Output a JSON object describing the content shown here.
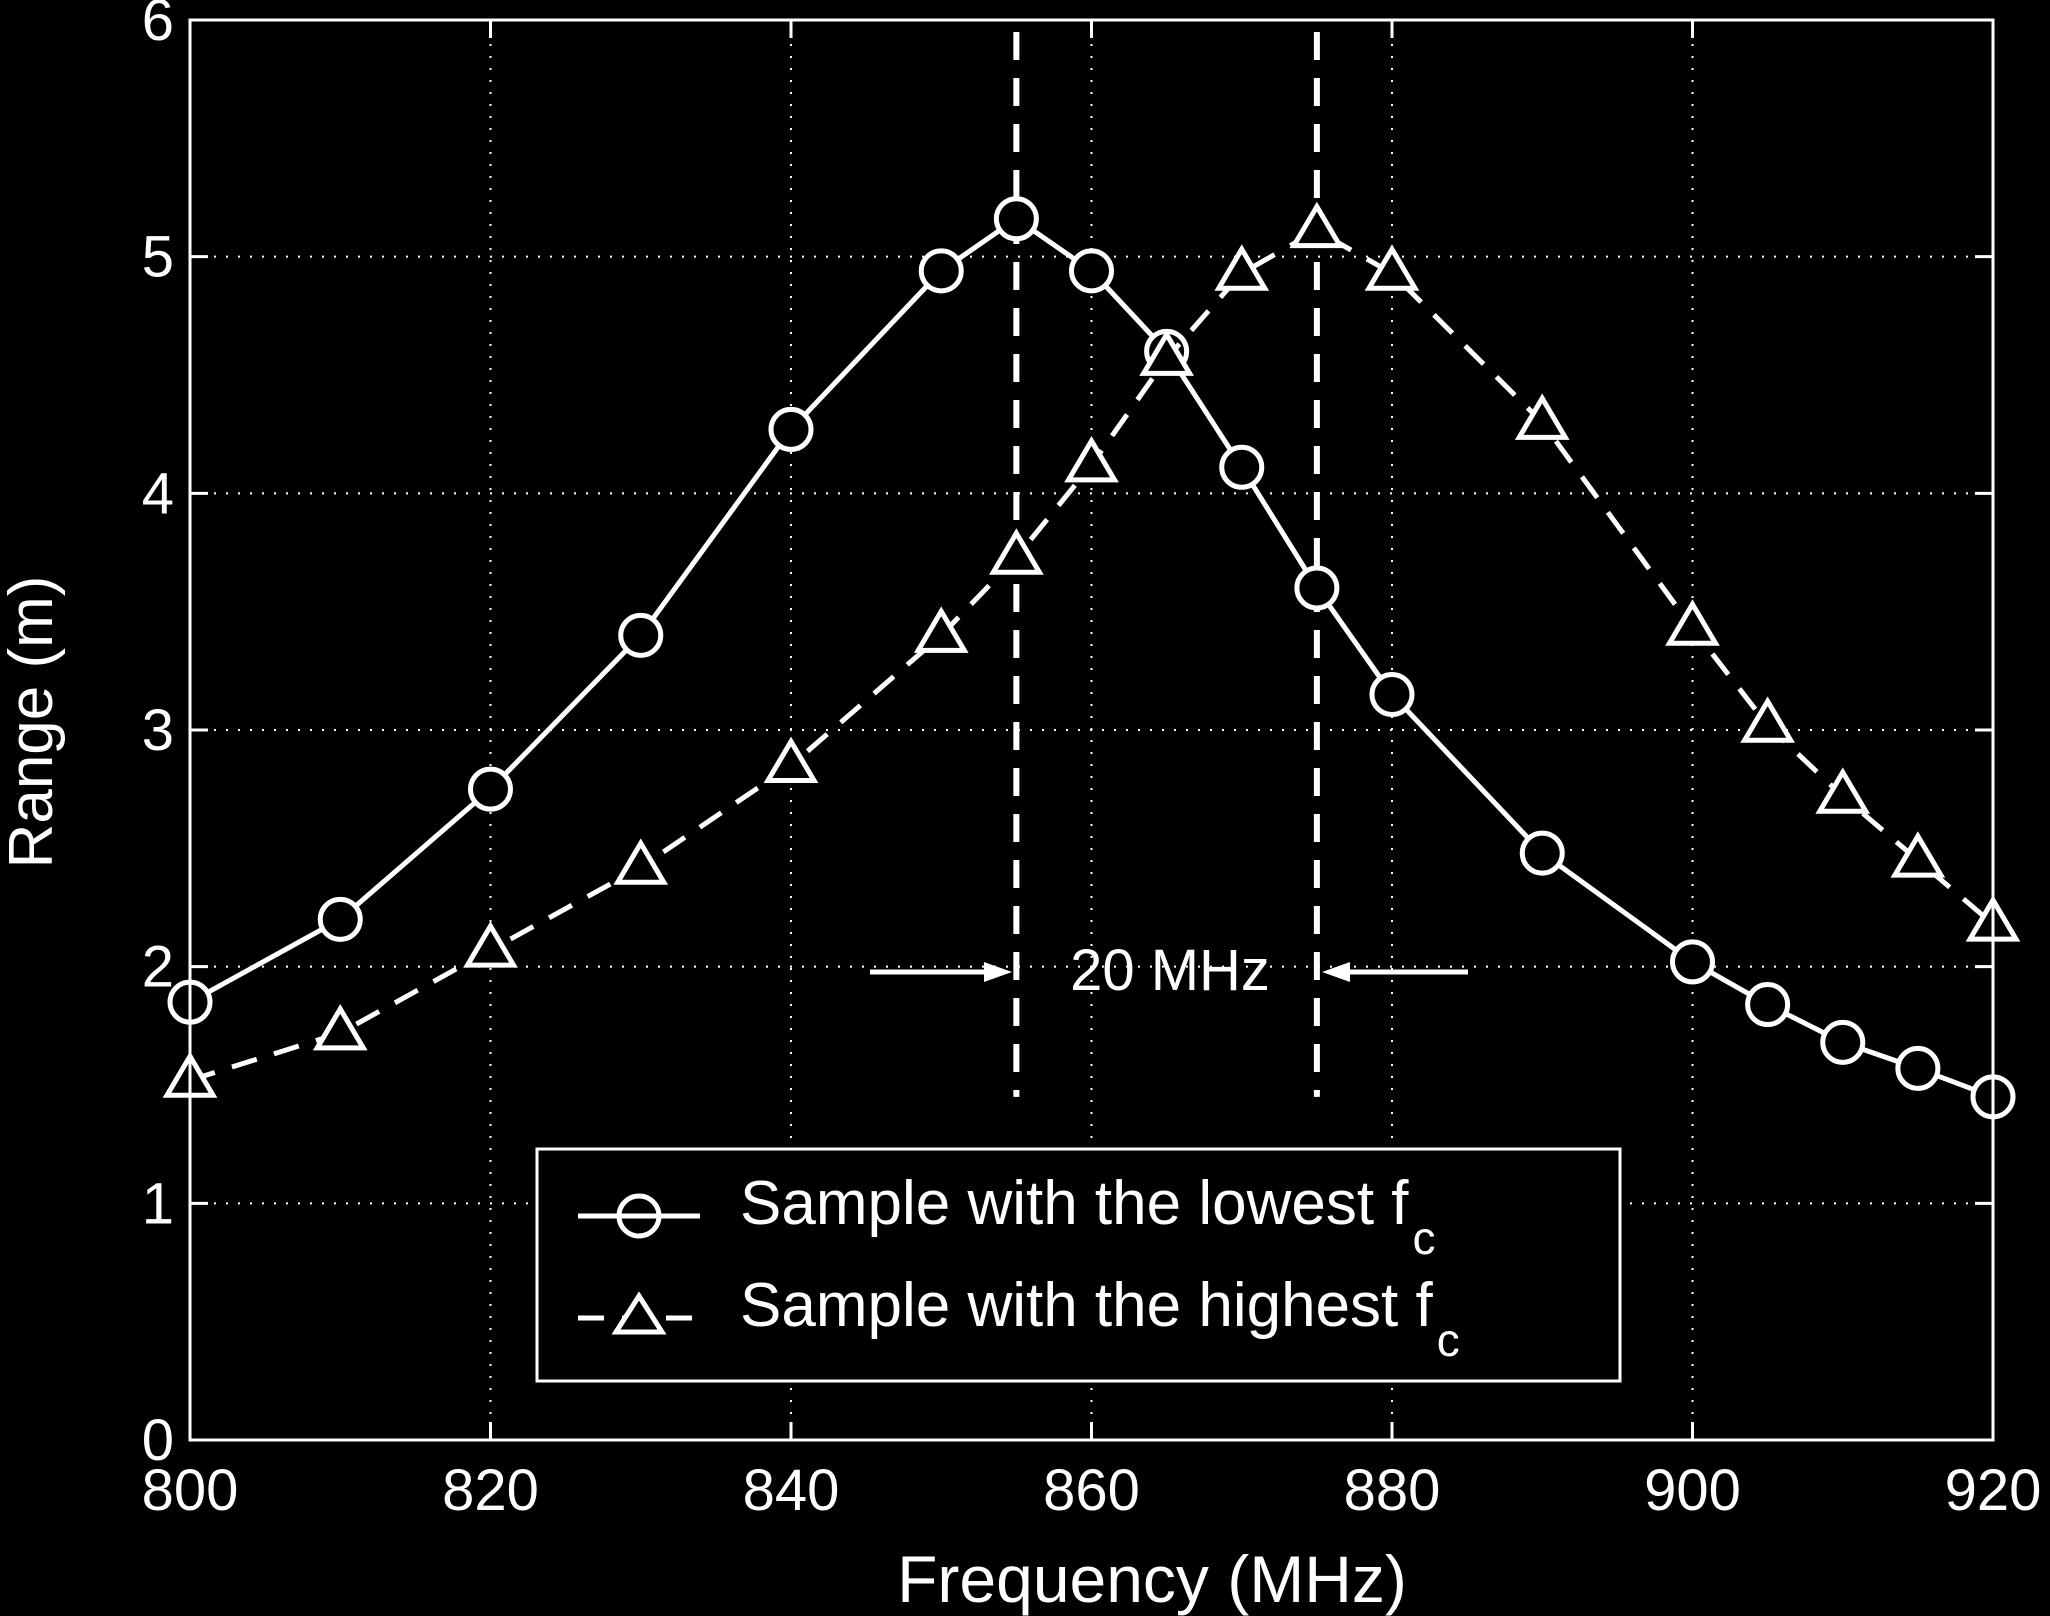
{
  "chart_data": {
    "type": "line",
    "xlabel": "Frequency (MHz)",
    "ylabel": "Range (m)",
    "xlim": [
      800,
      920
    ],
    "ylim": [
      0,
      6
    ],
    "xticks": [
      800,
      820,
      840,
      860,
      880,
      900,
      920
    ],
    "yticks": [
      0,
      1,
      2,
      3,
      4,
      5,
      6
    ],
    "grid": true,
    "legend_position": "bottom-center",
    "series": [
      {
        "name": "Sample with the lowest f",
        "name_subscript": "c",
        "marker": "circle",
        "line_style": "solid",
        "x": [
          800,
          810,
          820,
          830,
          840,
          850,
          855,
          860,
          865,
          870,
          875,
          880,
          890,
          900,
          905,
          910,
          915,
          920
        ],
        "y": [
          1.85,
          2.2,
          2.75,
          3.4,
          4.27,
          4.94,
          5.16,
          4.94,
          4.6,
          4.11,
          3.6,
          3.15,
          2.48,
          2.02,
          1.84,
          1.68,
          1.57,
          1.45
        ]
      },
      {
        "name": "Sample with the highest f",
        "name_subscript": "c",
        "marker": "triangle",
        "line_style": "dashed",
        "x": [
          800,
          810,
          820,
          830,
          840,
          850,
          855,
          860,
          865,
          870,
          875,
          880,
          890,
          900,
          905,
          910,
          915,
          920
        ],
        "y": [
          1.52,
          1.72,
          2.07,
          2.42,
          2.85,
          3.4,
          3.73,
          4.12,
          4.57,
          4.93,
          5.11,
          4.93,
          4.3,
          3.43,
          3.02,
          2.72,
          2.45,
          2.18
        ]
      }
    ],
    "vlines": [
      855,
      875
    ],
    "annotation": {
      "text": "20 MHz",
      "y": 2.0
    }
  }
}
